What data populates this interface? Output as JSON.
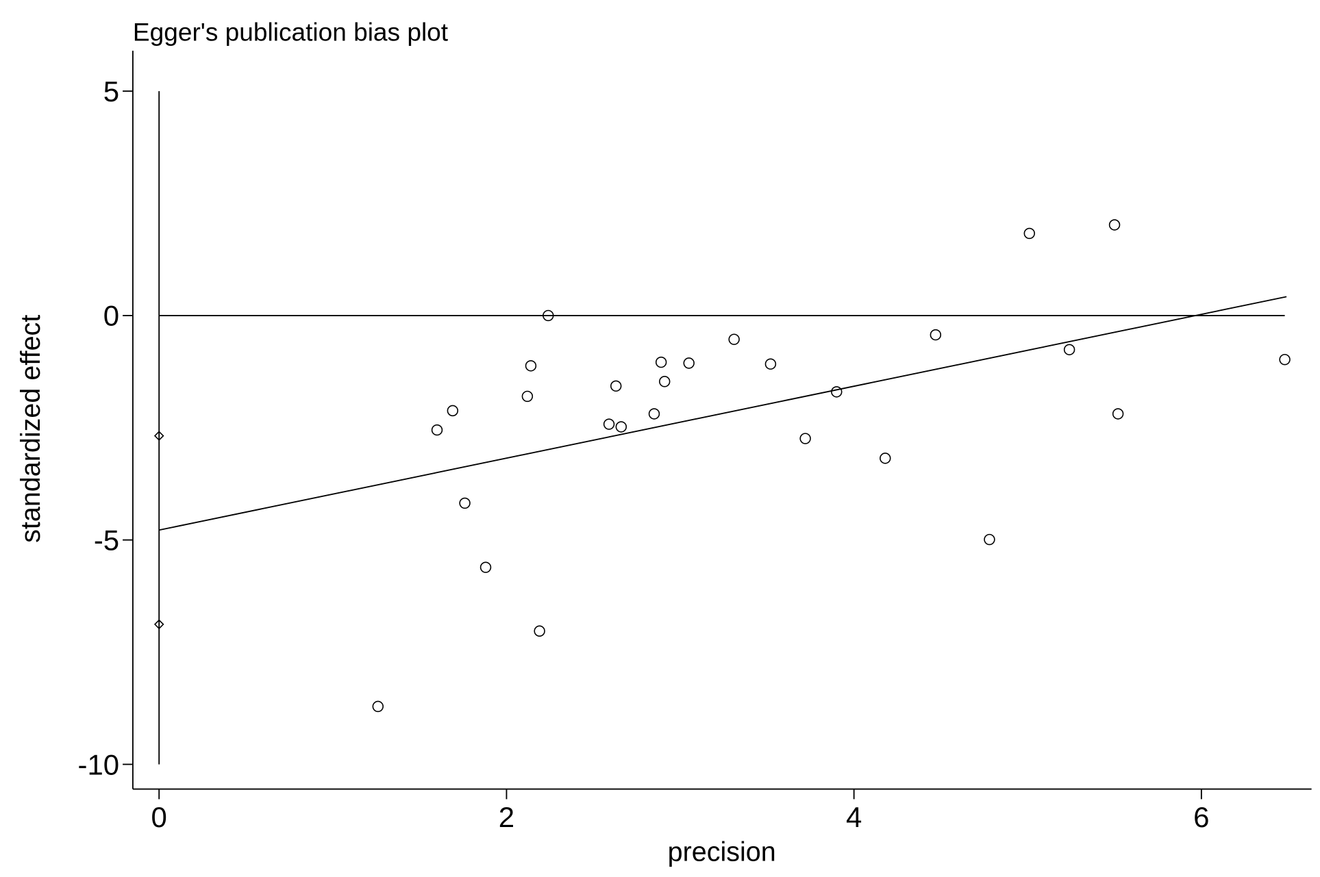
{
  "chart_data": {
    "type": "scatter",
    "title": "Egger's publication bias plot",
    "x_label": "precision",
    "y_label": "standardized effect",
    "xlim": [
      -0.151,
      6.634
    ],
    "ylim": [
      -10.55,
      5.9
    ],
    "xticks": [
      0,
      2,
      4,
      6
    ],
    "yticks": [
      5,
      0,
      -5,
      -10
    ],
    "series": [
      {
        "marker": "circle",
        "color": "#000000",
        "x": [
          1.26,
          1.6,
          1.69,
          1.76,
          1.88,
          2.12,
          2.14,
          2.19,
          2.24,
          2.59,
          2.63,
          2.66,
          2.85,
          2.89,
          2.91,
          3.05,
          3.31,
          3.52,
          3.72,
          3.9,
          4.18,
          4.47,
          4.78,
          5.01,
          5.24,
          5.5,
          5.52,
          6.48
        ],
        "values": [
          -8.71,
          -2.55,
          -2.12,
          -4.18,
          -5.61,
          -1.8,
          -1.12,
          -7.03,
          0.0,
          -2.42,
          -1.57,
          -2.48,
          -2.19,
          -1.04,
          -1.47,
          -1.06,
          -0.53,
          -1.08,
          -2.74,
          -1.7,
          -3.18,
          -0.43,
          -4.99,
          1.83,
          -0.76,
          2.02,
          -2.19,
          -0.98
        ]
      },
      {
        "marker": "diamond",
        "color": "#000000",
        "x": [
          0,
          0
        ],
        "values": [
          -2.68,
          -6.88
        ]
      },
      {
        "marker": "line",
        "color": "#000000",
        "x": [
          0,
          6.49
        ],
        "values": [
          -4.78,
          0.42
        ]
      },
      {
        "marker": "line",
        "color": "#000000",
        "x": [
          0,
          6.48
        ],
        "values": [
          0,
          0
        ]
      },
      {
        "marker": "line",
        "color": "#000000",
        "x": [
          0,
          0
        ],
        "values": [
          -10,
          5
        ]
      }
    ]
  }
}
